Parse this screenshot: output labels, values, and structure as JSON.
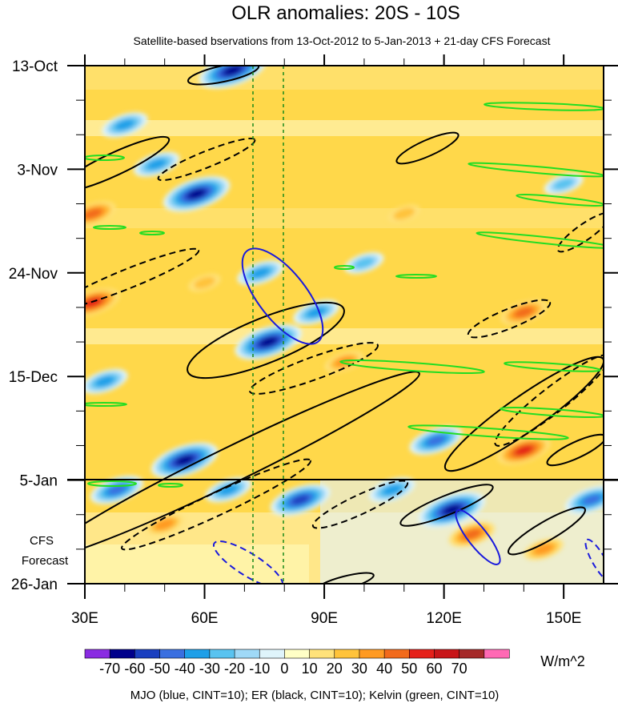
{
  "chart_data": {
    "type": "heatmap",
    "title": "OLR anomalies: 20S - 10S",
    "subtitle": "Satellite-based bservations from 13-Oct-2012 to 5-Jan-2013 + 21-day CFS Forecast",
    "x_ticks": [
      "30E",
      "60E",
      "90E",
      "120E",
      "150E"
    ],
    "x_tick_values": [
      30,
      60,
      90,
      120,
      150
    ],
    "xlim": [
      30,
      160
    ],
    "y_ticks": [
      "13-Oct",
      "3-Nov",
      "24-Nov",
      "15-Dec",
      "5-Jan",
      "26-Jan"
    ],
    "y_tick_days": [
      0,
      21,
      42,
      63,
      84,
      105
    ],
    "ylim_days": [
      0,
      105
    ],
    "forecast_label": [
      "CFS",
      "Forecast"
    ],
    "forecast_start_day": 84,
    "reference_lines_lon": [
      73,
      80
    ],
    "colorbar": {
      "unit": "W/m^2",
      "labels": [
        "-70",
        "-60",
        "-50",
        "-40",
        "-30",
        "-20",
        "-10",
        "0",
        "10",
        "20",
        "30",
        "40",
        "50",
        "60",
        "70"
      ],
      "colors": [
        "#8a2be2",
        "#00008b",
        "#1a3fc0",
        "#3a6fe0",
        "#1e9fe8",
        "#59c3f0",
        "#9fd9f7",
        "#dff4fb",
        "#ffffc6",
        "#ffe27a",
        "#ffc33a",
        "#ff9a22",
        "#f26a1b",
        "#e52019",
        "#c81518",
        "#a52a2a",
        "#ff69b4"
      ]
    },
    "footer": "MJO (blue, CINT=10); ER (black, CINT=10); Kelvin (green, CINT=10)",
    "contour_colors": {
      "mjo": "#1a1adc",
      "er": "#000000",
      "kelvin": "#22dd22"
    },
    "anomaly_blobs": [
      {
        "lon": 67,
        "day": 1,
        "value": -70
      },
      {
        "lon": 58,
        "day": 26,
        "value": -70
      },
      {
        "lon": 48,
        "day": 20,
        "value": -40
      },
      {
        "lon": 40,
        "day": 12,
        "value": -40
      },
      {
        "lon": 74,
        "day": 42,
        "value": -40
      },
      {
        "lon": 76,
        "day": 56,
        "value": -70
      },
      {
        "lon": 55,
        "day": 80,
        "value": -70
      },
      {
        "lon": 38,
        "day": 86,
        "value": -50
      },
      {
        "lon": 84,
        "day": 88,
        "value": -60
      },
      {
        "lon": 66,
        "day": 86,
        "value": -40
      },
      {
        "lon": 88,
        "day": 50,
        "value": -40
      },
      {
        "lon": 35,
        "day": 64,
        "value": -40
      },
      {
        "lon": 118,
        "day": 76,
        "value": -50
      },
      {
        "lon": 122,
        "day": 90,
        "value": -70
      },
      {
        "lon": 107,
        "day": 86,
        "value": -40
      },
      {
        "lon": 157,
        "day": 88,
        "value": -50
      },
      {
        "lon": 100,
        "day": 40,
        "value": -30
      },
      {
        "lon": 150,
        "day": 24,
        "value": -30
      },
      {
        "lon": 140,
        "day": 50,
        "value": 40
      },
      {
        "lon": 32,
        "day": 48,
        "value": 50
      },
      {
        "lon": 140,
        "day": 78,
        "value": 50
      },
      {
        "lon": 127,
        "day": 95,
        "value": 40
      },
      {
        "lon": 50,
        "day": 93,
        "value": 30
      },
      {
        "lon": 95,
        "day": 60,
        "value": 30
      },
      {
        "lon": 60,
        "day": 44,
        "value": 20
      },
      {
        "lon": 110,
        "day": 30,
        "value": 20
      },
      {
        "lon": 145,
        "day": 98,
        "value": 30
      },
      {
        "lon": 32,
        "day": 30,
        "value": 40
      }
    ]
  }
}
